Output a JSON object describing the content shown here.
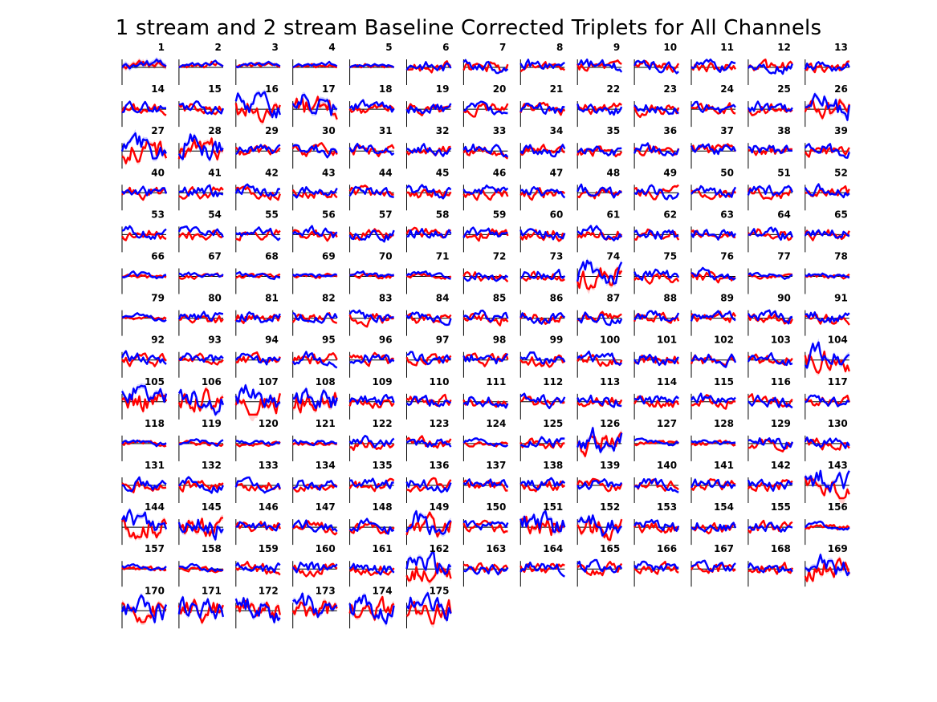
{
  "figure": {
    "title": "1 stream and 2 stream Baseline Corrected Triplets for All Channels"
  },
  "chart_data": {
    "type": "line",
    "layout": "small-multiples",
    "title": "1 stream and 2 stream Baseline Corrected Triplets for All Channels",
    "channel_count": 175,
    "grid_columns": 13,
    "series": [
      {
        "name": "",
        "color": "#ff0000"
      },
      {
        "name": "",
        "color": "#0000ff"
      }
    ],
    "baseline_color": "#000000",
    "shaded_error_band": true,
    "xlabel": "",
    "ylabel": "",
    "legend": "none",
    "grid": false,
    "channels": [
      {
        "id": 1,
        "label": "1",
        "red": [
          0.05,
          0.1,
          -0.1,
          0.15,
          0.05,
          0.2,
          0.35,
          0.2,
          0.4,
          0.6,
          0.3,
          0.5,
          0.2,
          0.45,
          0.1,
          0.3,
          0.2,
          0.1,
          0.3,
          0.5,
          0.3,
          0.2,
          0.1,
          0.05
        ],
        "blue": [
          0.0,
          0.2,
          0.3,
          0.1,
          -0.1,
          0.1,
          0.2,
          0.1,
          0.15,
          0.3,
          0.45,
          0.2,
          0.35,
          0.55,
          0.2,
          0.3,
          0.4,
          0.5,
          0.7,
          0.5,
          0.6,
          0.3,
          0.2,
          0.1
        ]
      },
      {
        "id": 2,
        "label": "2",
        "red": [
          0.05,
          0.1,
          0.05,
          0.2,
          0.0,
          0.1,
          0.25,
          0.1,
          0.2,
          0.15,
          0.3,
          0.1,
          0.2,
          0.0,
          0.1,
          0.3,
          0.2,
          0.5,
          0.3,
          0.2,
          0.4,
          0.3,
          0.2,
          0.1
        ],
        "blue": [
          0.0,
          0.1,
          0.2,
          0.15,
          0.25,
          0.2,
          0.3,
          0.4,
          0.2,
          0.3,
          0.35,
          0.2,
          0.1,
          0.3,
          0.4,
          0.3,
          0.2,
          0.3,
          0.5,
          0.6,
          0.4,
          0.3,
          0.2,
          0.1
        ]
      },
      {
        "id": 3,
        "label": "3",
        "red": [
          0.0,
          0.1,
          0.2,
          0.1,
          0.3,
          0.2,
          0.15,
          0.3,
          0.1,
          0.2,
          0.3,
          0.4,
          0.2,
          0.1,
          0.3,
          0.2,
          0.3,
          0.4,
          0.3,
          0.2,
          0.3,
          0.2,
          0.1,
          0.0
        ],
        "blue": [
          0.1,
          0.0,
          0.1,
          0.2,
          0.25,
          0.3,
          0.2,
          0.35,
          0.4,
          0.3,
          0.2,
          0.3,
          0.4,
          0.3,
          0.2,
          0.3,
          0.4,
          0.5,
          0.4,
          0.3,
          0.2,
          0.3,
          0.2,
          0.1
        ]
      },
      {
        "id": 4,
        "label": "4",
        "red": [
          0.0,
          0.05,
          0.1,
          0.15,
          0.2,
          0.1,
          0.05,
          0.15,
          0.1,
          0.2,
          0.3,
          0.1,
          0.0,
          0.1,
          0.2,
          0.1,
          0.15,
          0.1,
          0.05,
          0.2,
          0.15,
          0.1,
          0.05,
          0.0
        ],
        "blue": [
          0.0,
          0.1,
          0.2,
          0.3,
          0.2,
          0.1,
          0.2,
          0.25,
          0.3,
          0.2,
          0.15,
          0.3,
          0.2,
          0.25,
          0.3,
          0.4,
          0.3,
          0.2,
          0.35,
          0.5,
          0.3,
          0.25,
          0.2,
          0.1
        ]
      },
      {
        "id": 5,
        "label": "5",
        "red": [
          0.0,
          0.1,
          0.05,
          0.1,
          0.2,
          0.1,
          0.0,
          0.1,
          0.3,
          0.2,
          0.1,
          0.0,
          0.1,
          0.2,
          0.15,
          0.1,
          0.2,
          0.1,
          0.0,
          0.1,
          0.15,
          0.05,
          0.1,
          0.0
        ],
        "blue": [
          0.0,
          0.1,
          0.15,
          0.2,
          0.1,
          0.2,
          0.15,
          0.1,
          0.2,
          0.25,
          0.2,
          0.1,
          0.2,
          0.3,
          0.2,
          0.15,
          0.2,
          0.25,
          0.2,
          0.1,
          0.2,
          0.15,
          0.1,
          0.0
        ]
      }
    ]
  }
}
